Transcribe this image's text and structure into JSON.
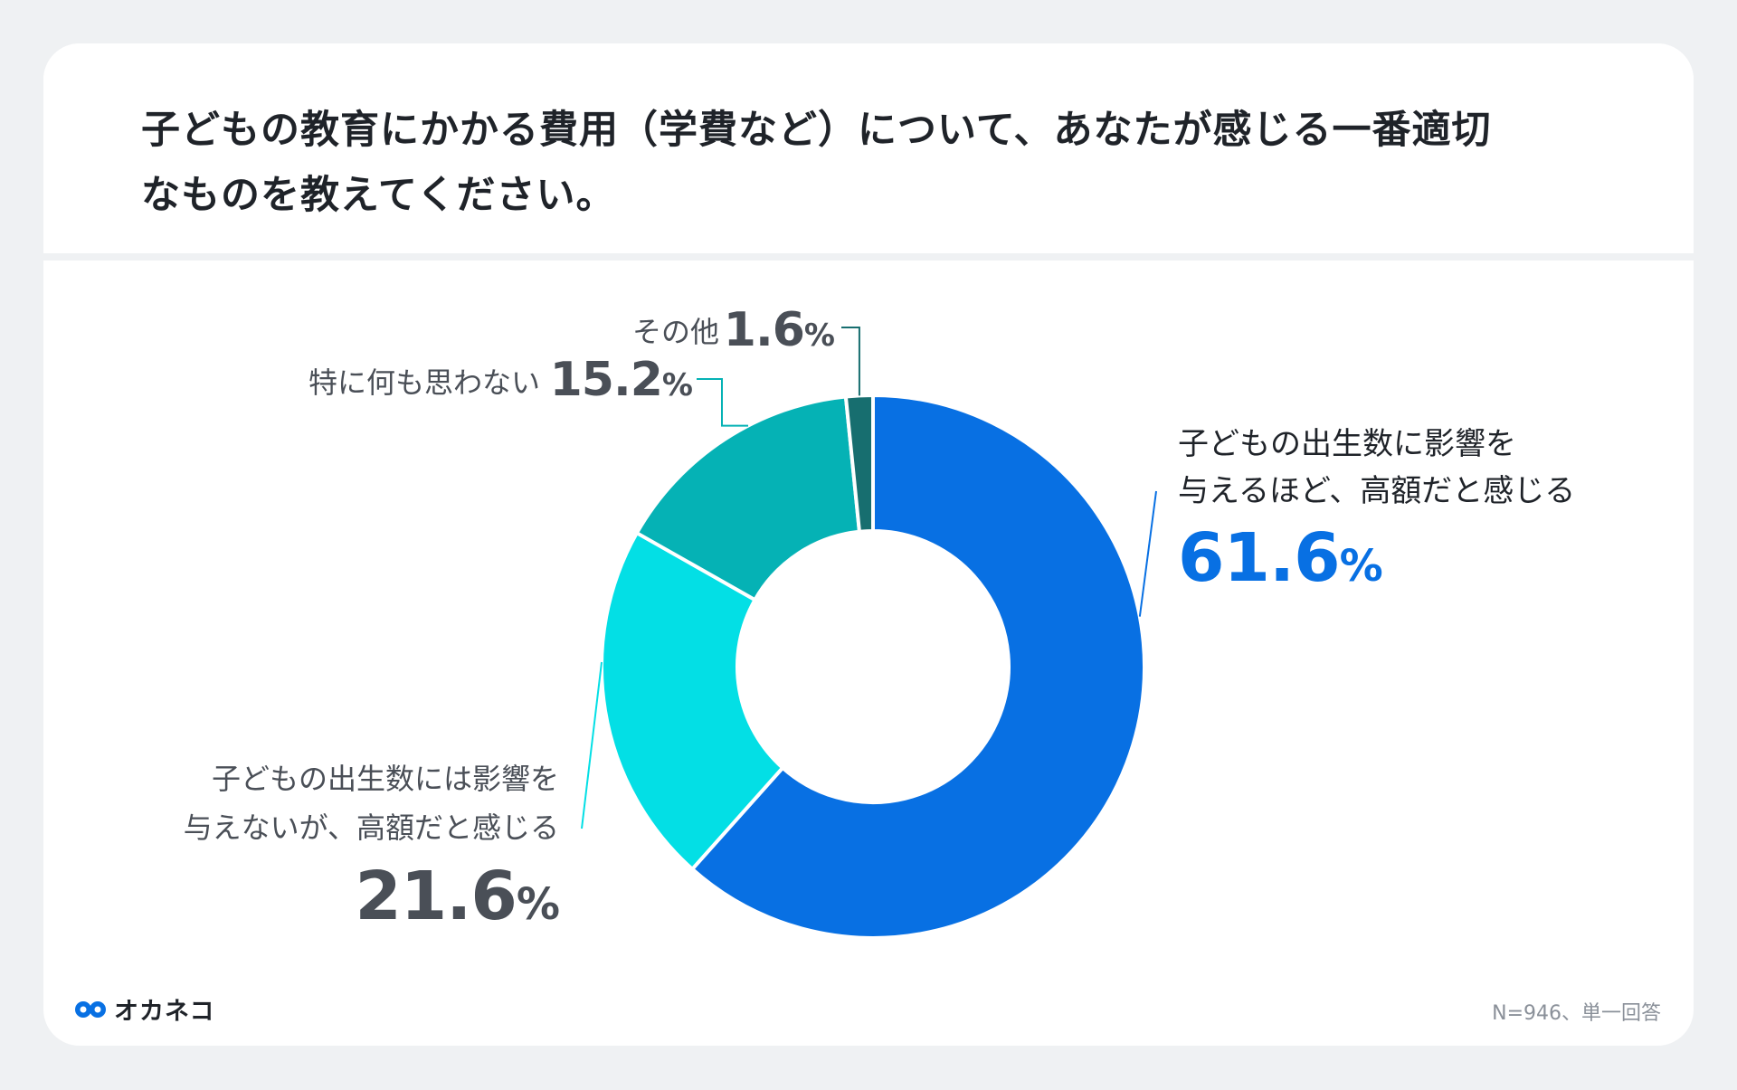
{
  "title": {
    "line1": "子どもの教育にかかる費用（学費など）について、あなたが感じる一番適切",
    "line2": "なものを教えてください。"
  },
  "chart_data": {
    "type": "pie",
    "donut": true,
    "slices": [
      {
        "label_lines": [
          "子どもの出生数に影響を",
          "与えるほど、高額だと感じる"
        ],
        "value": 61.6,
        "value_text": "61.6",
        "color": "#0870e3"
      },
      {
        "label_lines": [
          "子どもの出生数には影響を",
          "与えないが、高額だと感じる"
        ],
        "value": 21.6,
        "value_text": "21.6",
        "color": "#03dfe5"
      },
      {
        "label_lines": [
          "特に何も思わない"
        ],
        "value": 15.2,
        "value_text": "15.2",
        "color": "#05b2b5"
      },
      {
        "label_lines": [
          "その他"
        ],
        "value": 1.6,
        "value_text": "1.6",
        "color": "#176e6f"
      }
    ],
    "unit": "%"
  },
  "logo_text": "オカネコ",
  "footer_note": "N=946、単一回答"
}
